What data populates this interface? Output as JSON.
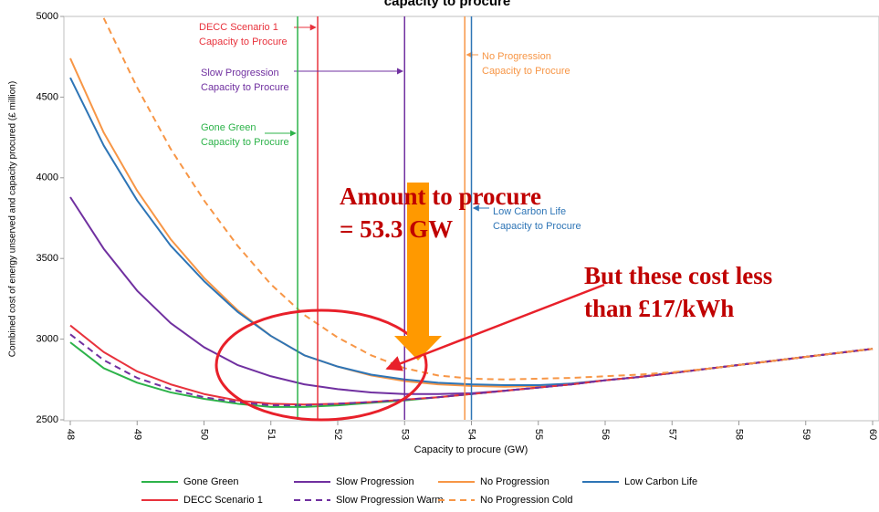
{
  "chart_data": {
    "type": "line",
    "title": "capacity to procure",
    "xlabel": "Capacity to procure (GW)",
    "ylabel": "Combined cost of energy unserved and capacity procured (£ million)",
    "xlim": [
      48,
      60
    ],
    "ylim": [
      2500,
      5000
    ],
    "xticks": [
      48,
      49,
      50,
      51,
      52,
      53,
      54,
      55,
      56,
      57,
      58,
      59,
      60
    ],
    "yticks": [
      2500,
      3000,
      3500,
      4000,
      4500,
      5000
    ],
    "x": [
      48,
      48.5,
      49,
      49.5,
      50,
      50.5,
      51,
      51.5,
      52,
      52.5,
      53,
      53.5,
      54,
      54.5,
      55,
      55.5,
      56,
      56.5,
      57,
      57.5,
      58,
      58.5,
      59,
      59.5,
      60
    ],
    "series": [
      {
        "name": "Gone Green",
        "color": "#2db34a",
        "dash": false,
        "values": [
          2980,
          2820,
          2730,
          2670,
          2630,
          2600,
          2580,
          2580,
          2590,
          2605,
          2620,
          2640,
          2660,
          2680,
          2700,
          2720,
          2745,
          2765,
          2790,
          2815,
          2840,
          2865,
          2890,
          2915,
          2940
        ]
      },
      {
        "name": "Slow Progression",
        "color": "#7030a0",
        "dash": false,
        "values": [
          3880,
          3560,
          3300,
          3100,
          2950,
          2840,
          2770,
          2720,
          2690,
          2670,
          2660,
          2660,
          2665,
          2680,
          2700,
          2720,
          2745,
          2765,
          2790,
          2815,
          2840,
          2865,
          2890,
          2915,
          2940
        ]
      },
      {
        "name": "No Progression",
        "color": "#f79646",
        "dash": false,
        "values": [
          4740,
          4280,
          3920,
          3620,
          3380,
          3180,
          3020,
          2900,
          2830,
          2775,
          2740,
          2720,
          2710,
          2705,
          2710,
          2725,
          2745,
          2765,
          2790,
          2815,
          2840,
          2865,
          2890,
          2915,
          2940
        ]
      },
      {
        "name": "Low Carbon Life",
        "color": "#2e75b6",
        "dash": false,
        "values": [
          4620,
          4200,
          3860,
          3580,
          3360,
          3170,
          3020,
          2900,
          2830,
          2780,
          2750,
          2730,
          2720,
          2715,
          2715,
          2725,
          2745,
          2765,
          2790,
          2815,
          2840,
          2865,
          2890,
          2915,
          2940
        ]
      },
      {
        "name": "DECC Scenario 1",
        "color": "#e8323c",
        "dash": false,
        "values": [
          3085,
          2920,
          2800,
          2720,
          2660,
          2620,
          2600,
          2595,
          2600,
          2610,
          2625,
          2640,
          2660,
          2680,
          2700,
          2720,
          2745,
          2765,
          2790,
          2815,
          2840,
          2865,
          2890,
          2915,
          2940
        ]
      },
      {
        "name": "Slow Progression Warm",
        "color": "#7030a0",
        "dash": true,
        "values": [
          3030,
          2870,
          2760,
          2690,
          2640,
          2610,
          2590,
          2590,
          2600,
          2610,
          2625,
          2640,
          2660,
          2680,
          2700,
          2720,
          2745,
          2765,
          2790,
          2815,
          2840,
          2865,
          2890,
          2915,
          2940
        ]
      },
      {
        "name": "No Progression Cold",
        "color": "#f79646",
        "dash": true,
        "values": [
          null,
          4990,
          4560,
          4180,
          3860,
          3580,
          3340,
          3150,
          3010,
          2900,
          2820,
          2775,
          2755,
          2750,
          2755,
          2760,
          2770,
          2780,
          2795,
          2815,
          2840,
          2865,
          2890,
          2915,
          2940
        ]
      }
    ],
    "markers": [
      {
        "label": [
          "DECC Scenario 1",
          "Capacity to Procure"
        ],
        "x": 51.7,
        "color": "#e8323c"
      },
      {
        "label": [
          "Slow Progression",
          "Capacity to Procure"
        ],
        "x": 53.0,
        "color": "#7030a0"
      },
      {
        "label": [
          "Gone Green",
          "Capacity to Procure"
        ],
        "x": 51.4,
        "color": "#2db34a"
      },
      {
        "label": [
          "No Progression",
          "Capacity to Procure"
        ],
        "x": 53.9,
        "color": "#f79646"
      },
      {
        "label": [
          "Low Carbon Life",
          "Capacity to Procure"
        ],
        "x": 54.0,
        "color": "#2e75b6"
      }
    ],
    "annotations": [
      {
        "text": [
          "Amount to procure",
          "= 53.3 GW"
        ]
      },
      {
        "text": [
          "But these cost less",
          "than £17/kWh"
        ]
      }
    ]
  }
}
